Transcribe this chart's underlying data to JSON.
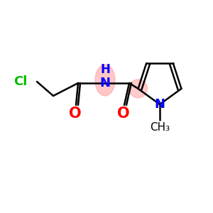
{
  "background_color": "#ffffff",
  "bond_color": "#000000",
  "cl_color": "#00bb00",
  "o_color": "#ff0000",
  "n_color": "#0000ff",
  "nh_highlight_color": "#ff9999",
  "c2_highlight_color": "#ff9999",
  "line_width": 1.8,
  "font_size_atoms": 13,
  "fig_w": 3.0,
  "fig_h": 3.0,
  "dpi": 100,
  "xlim": [
    0,
    300
  ],
  "ylim": [
    0,
    300
  ]
}
